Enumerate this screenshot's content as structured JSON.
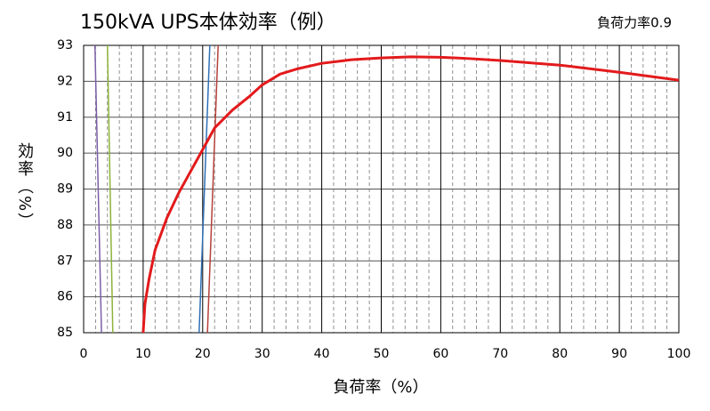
{
  "chart_data": {
    "type": "line",
    "title": "150kVA UPS本体効率（例）",
    "annotation": "負荷力率0.9",
    "x_label": "負荷率（%）",
    "y_label": "効率（%）",
    "xlim": [
      0,
      100
    ],
    "xticks": [
      0,
      10,
      20,
      30,
      40,
      50,
      60,
      70,
      80,
      90,
      100
    ],
    "minor_xticks": [
      2,
      4,
      6,
      8,
      12,
      14,
      16,
      18,
      22,
      24,
      26,
      28,
      32,
      34,
      36,
      38,
      42,
      44,
      46,
      48,
      52,
      54,
      56,
      58,
      62,
      64,
      66,
      68,
      72,
      74,
      76,
      78,
      82,
      84,
      86,
      88,
      92,
      94,
      96,
      98
    ],
    "ylim": [
      85,
      93
    ],
    "yticks": [
      85,
      86,
      87,
      88,
      89,
      90,
      91,
      92,
      93
    ],
    "grid": true,
    "series": [
      {
        "color": "#e31a1c",
        "width": 3,
        "x": [
          10,
          10.3,
          11,
          12,
          14,
          16,
          18,
          20,
          22,
          25,
          28,
          30,
          33,
          36,
          40,
          45,
          50,
          55,
          60,
          65,
          70,
          80,
          90,
          100
        ],
        "values": [
          85,
          85.8,
          86.5,
          87.3,
          88.2,
          88.9,
          89.5,
          90.1,
          90.7,
          91.2,
          91.6,
          91.9,
          92.2,
          92.35,
          92.5,
          92.6,
          92.65,
          92.68,
          92.67,
          92.63,
          92.58,
          92.45,
          92.25,
          92.03
        ]
      },
      {
        "color": "#7b5ea7",
        "width": 1.5,
        "x": [
          1.9,
          3.0
        ],
        "values": [
          93,
          85
        ]
      },
      {
        "color": "#8db33a",
        "width": 1.5,
        "x": [
          4.0,
          4.9
        ],
        "values": [
          93,
          85
        ]
      },
      {
        "color": "#2f6fb5",
        "width": 1.5,
        "x": [
          21.2,
          19.4
        ],
        "values": [
          93,
          85
        ]
      },
      {
        "color": "#b5403a",
        "width": 1.5,
        "x": [
          22.6,
          20.8
        ],
        "values": [
          93,
          85
        ]
      }
    ]
  }
}
